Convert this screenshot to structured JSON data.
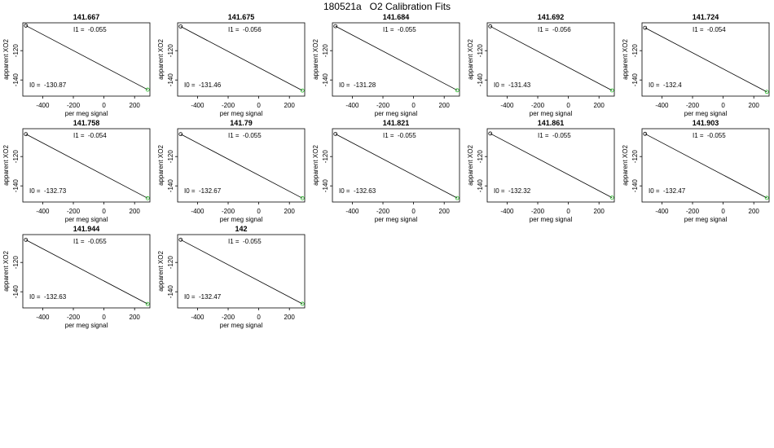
{
  "title": "180521a   O2 Calibration Fits",
  "chart_data": [
    {
      "type": "line",
      "title": "141.667",
      "annotations": [
        "I1 =  -0.055",
        "I0 =  -130.87"
      ],
      "x_label": "per meg signal",
      "y_label": "apparent XO2",
      "xlim": [
        -530,
        300
      ],
      "ylim": [
        -151,
        -101
      ],
      "xticks": [
        -400,
        -200,
        0,
        200
      ],
      "yticks": [
        -120,
        -140
      ],
      "x": [
        -510,
        285
      ],
      "series": [
        {
          "color": "#000000",
          "values": [
            -102.9,
            -146.6
          ]
        }
      ],
      "marker_colors": [
        "#000000",
        "#22bb22"
      ]
    },
    {
      "type": "line",
      "title": "141.675",
      "annotations": [
        "I1 =  -0.056",
        "I0 =  -131.46"
      ],
      "x_label": "per meg signal",
      "y_label": "apparent XO2",
      "xlim": [
        -530,
        300
      ],
      "ylim": [
        -151,
        -101
      ],
      "xticks": [
        -400,
        -200,
        0,
        200
      ],
      "yticks": [
        -120,
        -140
      ],
      "x": [
        -510,
        285
      ],
      "series": [
        {
          "color": "#000000",
          "values": [
            -103.5,
            -147.2
          ]
        }
      ],
      "marker_colors": [
        "#000000",
        "#22bb22"
      ]
    },
    {
      "type": "line",
      "title": "141.684",
      "annotations": [
        "I1 =  -0.055",
        "I0 =  -131.28"
      ],
      "x_label": "per meg signal",
      "y_label": "apparent XO2",
      "xlim": [
        -530,
        300
      ],
      "ylim": [
        -151,
        -101
      ],
      "xticks": [
        -400,
        -200,
        0,
        200
      ],
      "yticks": [
        -120,
        -140
      ],
      "x": [
        -510,
        285
      ],
      "series": [
        {
          "color": "#000000",
          "values": [
            -103.3,
            -147.0
          ]
        }
      ],
      "marker_colors": [
        "#000000",
        "#22bb22"
      ]
    },
    {
      "type": "line",
      "title": "141.692",
      "annotations": [
        "I1 =  -0.056",
        "I0 =  -131.43"
      ],
      "x_label": "per meg signal",
      "y_label": "apparent XO2",
      "xlim": [
        -530,
        300
      ],
      "ylim": [
        -151,
        -101
      ],
      "xticks": [
        -400,
        -200,
        0,
        200
      ],
      "yticks": [
        -120,
        -140
      ],
      "x": [
        -510,
        285
      ],
      "series": [
        {
          "color": "#000000",
          "values": [
            -103.4,
            -147.1
          ]
        }
      ],
      "marker_colors": [
        "#000000",
        "#22bb22"
      ]
    },
    {
      "type": "line",
      "title": "141.724",
      "annotations": [
        "I1 =  -0.054",
        "I0 =  -132.4"
      ],
      "x_label": "per meg signal",
      "y_label": "apparent XO2",
      "xlim": [
        -530,
        300
      ],
      "ylim": [
        -151,
        -101
      ],
      "xticks": [
        -400,
        -200,
        0,
        200
      ],
      "yticks": [
        -120,
        -140
      ],
      "x": [
        -510,
        285
      ],
      "series": [
        {
          "color": "#000000",
          "values": [
            -104.4,
            -148.1
          ]
        }
      ],
      "marker_colors": [
        "#000000",
        "#22bb22"
      ]
    },
    {
      "type": "line",
      "title": "141.758",
      "annotations": [
        "I1 =  -0.054",
        "I0 =  -132.73"
      ],
      "x_label": "per meg signal",
      "y_label": "apparent XO2",
      "xlim": [
        -530,
        300
      ],
      "ylim": [
        -151,
        -101
      ],
      "xticks": [
        -400,
        -200,
        0,
        200
      ],
      "yticks": [
        -120,
        -140
      ],
      "x": [
        -510,
        285
      ],
      "series": [
        {
          "color": "#000000",
          "values": [
            -104.7,
            -148.4
          ]
        }
      ],
      "marker_colors": [
        "#000000",
        "#22bb22"
      ]
    },
    {
      "type": "line",
      "title": "141.79",
      "annotations": [
        "I1 =  -0.055",
        "I0 =  -132.67"
      ],
      "x_label": "per meg signal",
      "y_label": "apparent XO2",
      "xlim": [
        -530,
        300
      ],
      "ylim": [
        -151,
        -101
      ],
      "xticks": [
        -400,
        -200,
        0,
        200
      ],
      "yticks": [
        -120,
        -140
      ],
      "x": [
        -510,
        285
      ],
      "series": [
        {
          "color": "#000000",
          "values": [
            -104.7,
            -148.4
          ]
        }
      ],
      "marker_colors": [
        "#000000",
        "#22bb22"
      ]
    },
    {
      "type": "line",
      "title": "141.821",
      "annotations": [
        "I1 =  -0.055",
        "I0 =  -132.63"
      ],
      "x_label": "per meg signal",
      "y_label": "apparent XO2",
      "xlim": [
        -530,
        300
      ],
      "ylim": [
        -151,
        -101
      ],
      "xticks": [
        -400,
        -200,
        0,
        200
      ],
      "yticks": [
        -120,
        -140
      ],
      "x": [
        -510,
        285
      ],
      "series": [
        {
          "color": "#000000",
          "values": [
            -104.6,
            -148.3
          ]
        }
      ],
      "marker_colors": [
        "#000000",
        "#22bb22"
      ]
    },
    {
      "type": "line",
      "title": "141.861",
      "annotations": [
        "I1 =  -0.055",
        "I0 =  -132.32"
      ],
      "x_label": "per meg signal",
      "y_label": "apparent XO2",
      "xlim": [
        -530,
        300
      ],
      "ylim": [
        -151,
        -101
      ],
      "xticks": [
        -400,
        -200,
        0,
        200
      ],
      "yticks": [
        -120,
        -140
      ],
      "x": [
        -510,
        285
      ],
      "series": [
        {
          "color": "#000000",
          "values": [
            -104.3,
            -148.0
          ]
        }
      ],
      "marker_colors": [
        "#000000",
        "#22bb22"
      ]
    },
    {
      "type": "line",
      "title": "141.903",
      "annotations": [
        "I1 =  -0.055",
        "I0 =  -132.47"
      ],
      "x_label": "per meg signal",
      "y_label": "apparent XO2",
      "xlim": [
        -530,
        300
      ],
      "ylim": [
        -151,
        -101
      ],
      "xticks": [
        -400,
        -200,
        0,
        200
      ],
      "yticks": [
        -120,
        -140
      ],
      "x": [
        -510,
        285
      ],
      "series": [
        {
          "color": "#000000",
          "values": [
            -104.5,
            -148.2
          ]
        }
      ],
      "marker_colors": [
        "#000000",
        "#22bb22"
      ]
    },
    {
      "type": "line",
      "title": "141.944",
      "annotations": [
        "I1 =  -0.055",
        "I0 =  -132.63"
      ],
      "x_label": "per meg signal",
      "y_label": "apparent XO2",
      "xlim": [
        -530,
        300
      ],
      "ylim": [
        -151,
        -101
      ],
      "xticks": [
        -400,
        -200,
        0,
        200
      ],
      "yticks": [
        -120,
        -140
      ],
      "x": [
        -510,
        285
      ],
      "series": [
        {
          "color": "#000000",
          "values": [
            -104.6,
            -148.3
          ]
        }
      ],
      "marker_colors": [
        "#000000",
        "#22bb22"
      ]
    },
    {
      "type": "line",
      "title": "142",
      "annotations": [
        "I1 =  -0.055",
        "I0 =  -132.47"
      ],
      "x_label": "per meg signal",
      "y_label": "apparent XO2",
      "xlim": [
        -530,
        300
      ],
      "ylim": [
        -151,
        -101
      ],
      "xticks": [
        -400,
        -200,
        0,
        200
      ],
      "yticks": [
        -120,
        -140
      ],
      "x": [
        -510,
        285
      ],
      "series": [
        {
          "color": "#000000",
          "values": [
            -104.5,
            -148.2
          ]
        }
      ],
      "marker_colors": [
        "#000000",
        "#22bb22"
      ]
    }
  ]
}
